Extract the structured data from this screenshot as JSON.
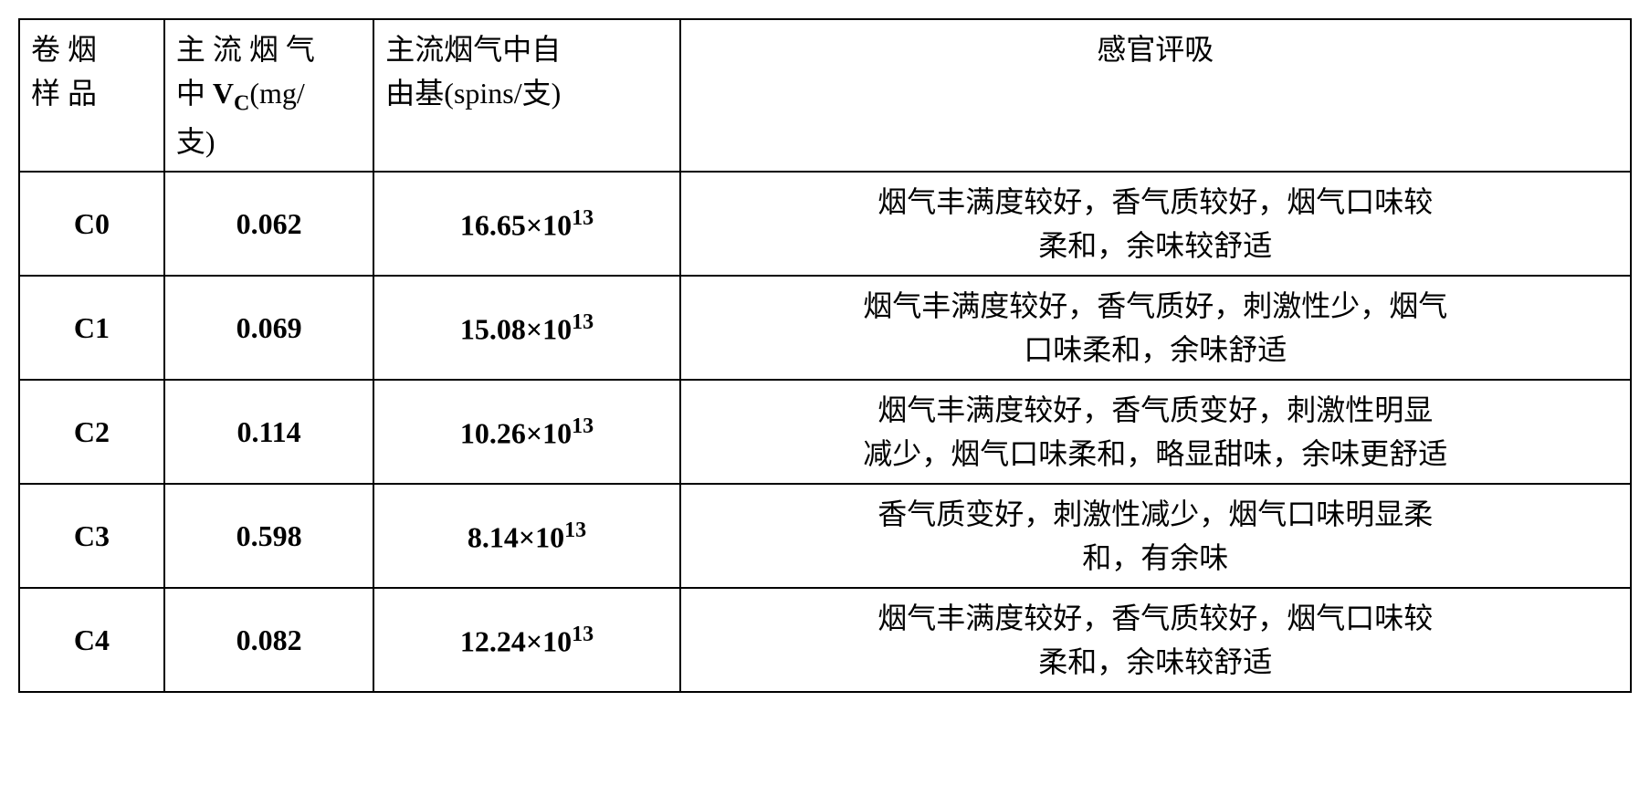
{
  "table": {
    "columns": [
      {
        "key": "sample",
        "header_line1": "卷 烟",
        "header_line2": "样 品",
        "header_line3": "",
        "width_pct": 9,
        "align": "center"
      },
      {
        "key": "vc",
        "header_prefix": "主 流 烟 气",
        "header_line2_a": "中",
        "header_line2_b": "V",
        "header_line2_sub": "C",
        "header_line2_c": "(mg/",
        "header_line3": "支)",
        "width_pct": 13,
        "align": "center"
      },
      {
        "key": "radicals",
        "header_line1": "主流烟气中自",
        "header_line2": "由基(spins/支)",
        "width_pct": 19,
        "align": "center"
      },
      {
        "key": "sensory",
        "header": "感官评吸",
        "width_pct": 59,
        "align": "center"
      }
    ],
    "rows": [
      {
        "sample": "C0",
        "vc": "0.062",
        "radicals_coef": "16.65",
        "radicals_exp": "13",
        "sensory_line1": "烟气丰满度较好，香气质较好，烟气口味较",
        "sensory_line2": "柔和，余味较舒适"
      },
      {
        "sample": "C1",
        "vc": "0.069",
        "radicals_coef": "15.08",
        "radicals_exp": "13",
        "sensory_line1": "烟气丰满度较好，香气质好，刺激性少，烟气",
        "sensory_line2": "口味柔和，余味舒适"
      },
      {
        "sample": "C2",
        "vc": "0.114",
        "radicals_coef": "10.26",
        "radicals_exp": "13",
        "sensory_line1": "烟气丰满度较好，香气质变好，刺激性明显",
        "sensory_line2": "减少，烟气口味柔和，略显甜味，余味更舒适"
      },
      {
        "sample": "C3",
        "vc": "0.598",
        "radicals_coef": "8.14",
        "radicals_exp": "13",
        "sensory_line1": "香气质变好，刺激性减少，烟气口味明显柔",
        "sensory_line2": "和，有余味"
      },
      {
        "sample": "C4",
        "vc": "0.082",
        "radicals_coef": "12.24",
        "radicals_exp": "13",
        "sensory_line1": "烟气丰满度较好，香气质较好，烟气口味较",
        "sensory_line2": "柔和，余味较舒适"
      }
    ],
    "styling": {
      "border_color": "#000000",
      "border_width": 2,
      "background_color": "#ffffff",
      "font_family": "SimSun, Times New Roman, serif",
      "base_fontsize": 32,
      "header_font_weight": "normal",
      "data_font_weight": "bold",
      "sensory_font_weight": "normal",
      "times_symbol": "×",
      "exponent_prefix": "10"
    }
  }
}
